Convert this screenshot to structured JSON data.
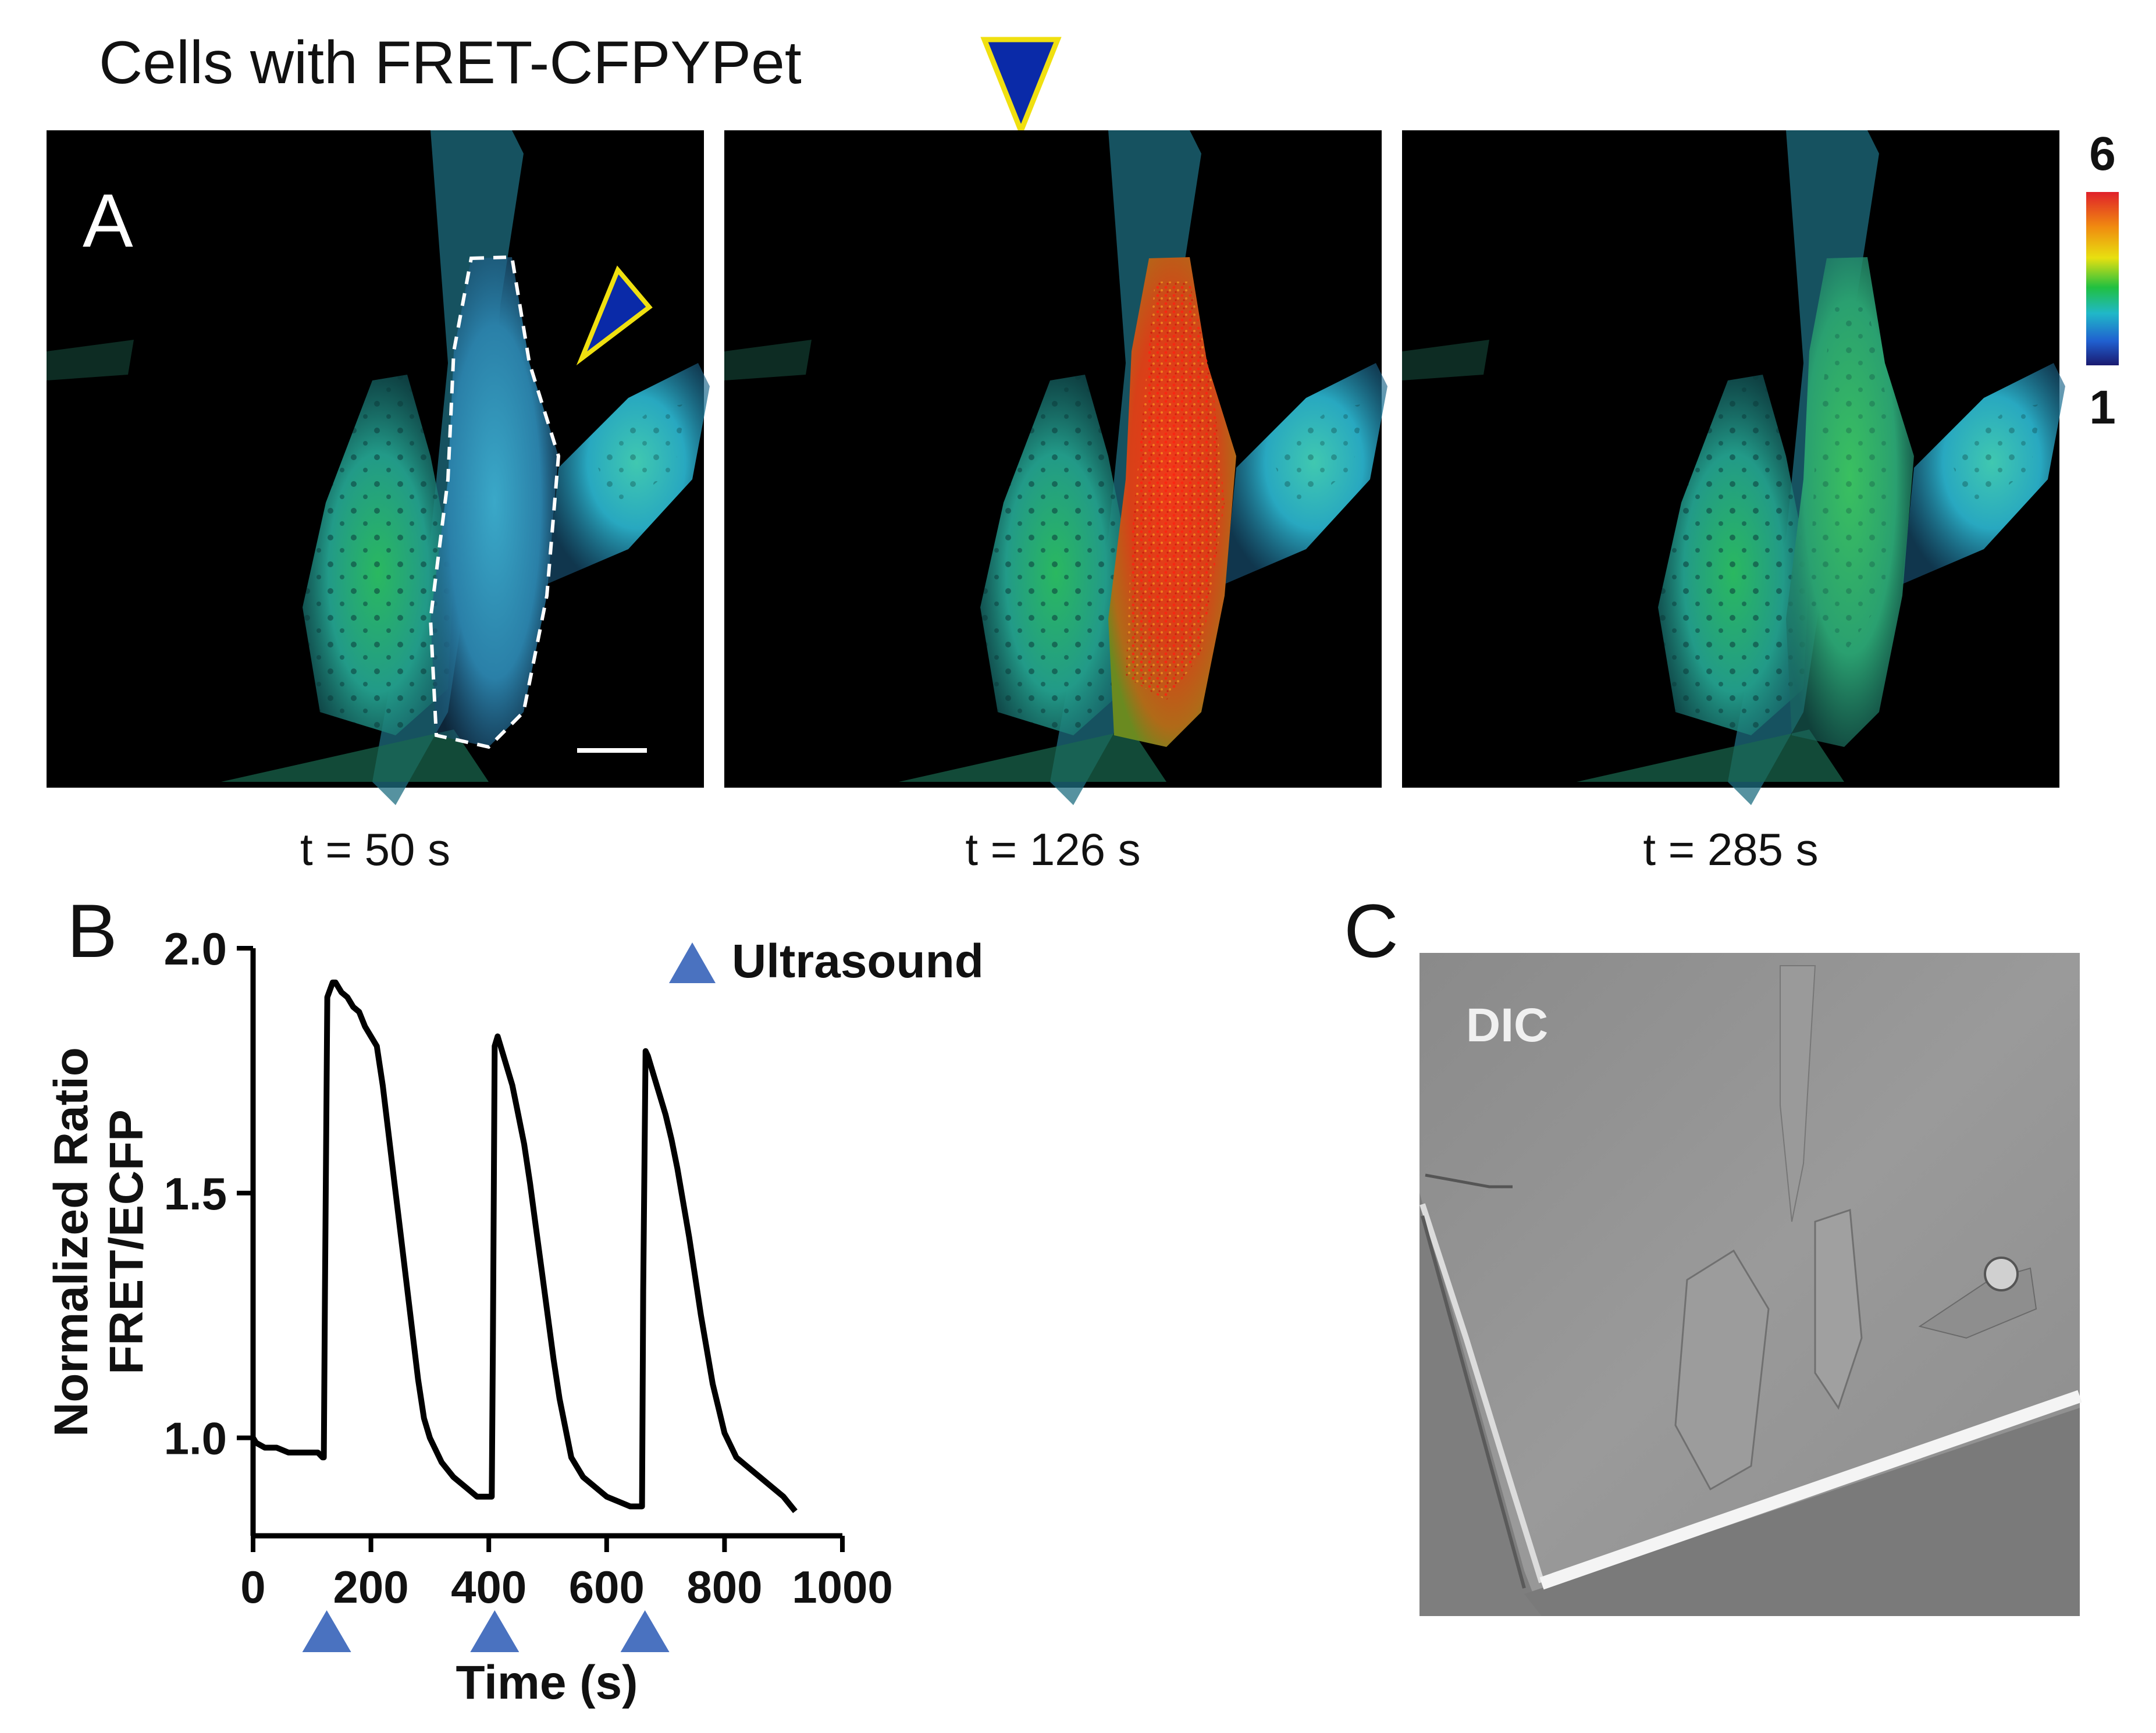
{
  "header": {
    "title": "Cells with FRET-CFPYPet"
  },
  "panel_a": {
    "label": "A",
    "frames": [
      {
        "time_label": "t = 50 s",
        "highlight": "none"
      },
      {
        "time_label": "t = 126 s",
        "highlight": "red"
      },
      {
        "time_label": "t = 285 s",
        "highlight": "green"
      }
    ],
    "colorbar": {
      "max_label": "6",
      "min_label": "1",
      "colors": [
        "#e0202a",
        "#f08a10",
        "#e8e010",
        "#20c040",
        "#20b8c8",
        "#2060d0",
        "#1a1a70"
      ]
    },
    "marker_colors": {
      "fill": "#0a2aa8",
      "stroke": "#f0e010"
    }
  },
  "panel_b": {
    "label": "B"
  },
  "panel_c": {
    "label": "C",
    "image_label": "DIC"
  },
  "chart_data": {
    "type": "line",
    "title": "",
    "xlabel": "Time (s)",
    "ylabel_lines": [
      "Normalized Ratio",
      "FRET/ECFP"
    ],
    "xlim": [
      0,
      1000
    ],
    "ylim": [
      0.8,
      2.0
    ],
    "xticks": [
      0,
      200,
      400,
      600,
      800,
      1000
    ],
    "xtick_labels": [
      "0",
      "200",
      "400",
      "600",
      "800",
      "1000"
    ],
    "yticks": [
      1.0,
      1.5,
      2.0
    ],
    "ytick_labels": [
      "1.0",
      "1.5",
      "2.0"
    ],
    "grid": false,
    "legend": {
      "label": "Ultrasound",
      "placement": "top-right",
      "marker": "triangle"
    },
    "ultrasound_times": [
      125,
      410,
      665
    ],
    "marker_color": "#4a72c0",
    "series": [
      {
        "x": [
          0,
          5,
          20,
          40,
          60,
          80,
          100,
          110,
          118,
          120,
          122,
          126,
          135,
          140,
          150,
          160,
          170,
          180,
          190,
          200,
          210,
          220,
          230,
          240,
          250,
          260,
          270,
          280,
          290,
          300,
          320,
          340,
          360,
          380,
          400,
          405,
          407,
          410,
          415,
          420,
          430,
          440,
          450,
          460,
          470,
          480,
          490,
          500,
          510,
          520,
          530,
          540,
          560,
          580,
          600,
          620,
          640,
          655,
          660,
          662,
          666,
          670,
          680,
          690,
          700,
          710,
          720,
          730,
          740,
          750,
          760,
          770,
          780,
          790,
          800,
          820,
          840,
          860,
          880,
          900,
          920
        ],
        "y": [
          1.0,
          0.99,
          0.98,
          0.98,
          0.97,
          0.97,
          0.97,
          0.97,
          0.96,
          0.96,
          1.3,
          1.9,
          1.93,
          1.93,
          1.91,
          1.9,
          1.88,
          1.87,
          1.84,
          1.82,
          1.8,
          1.72,
          1.62,
          1.52,
          1.42,
          1.32,
          1.22,
          1.12,
          1.04,
          1.0,
          0.95,
          0.92,
          0.9,
          0.88,
          0.88,
          0.88,
          1.2,
          1.8,
          1.82,
          1.8,
          1.76,
          1.72,
          1.66,
          1.6,
          1.52,
          1.43,
          1.34,
          1.25,
          1.16,
          1.08,
          1.02,
          0.96,
          0.92,
          0.9,
          0.88,
          0.87,
          0.86,
          0.86,
          0.86,
          1.3,
          1.79,
          1.78,
          1.74,
          1.7,
          1.66,
          1.61,
          1.55,
          1.48,
          1.41,
          1.33,
          1.25,
          1.18,
          1.11,
          1.06,
          1.01,
          0.96,
          0.94,
          0.92,
          0.9,
          0.88,
          0.85
        ]
      }
    ]
  }
}
